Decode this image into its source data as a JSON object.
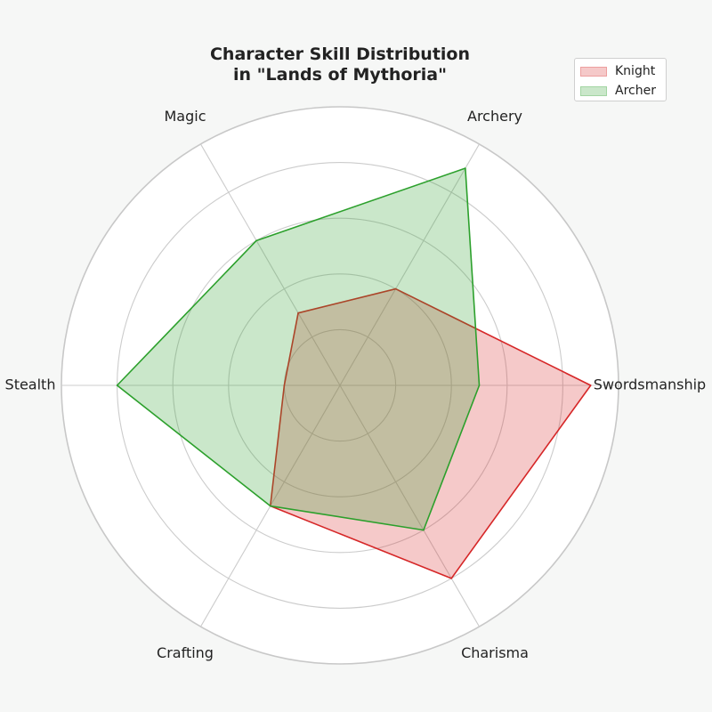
{
  "chart_data": {
    "type": "radar",
    "title_lines": [
      "Character Skill Distribution",
      "in \"Lands of Mythoria\""
    ],
    "axes": [
      "Swordsmanship",
      "Archery",
      "Magic",
      "Stealth",
      "Crafting",
      "Charisma"
    ],
    "rlim": [
      0,
      10
    ],
    "grid_levels": [
      2,
      4,
      6,
      8,
      10
    ],
    "grid": true,
    "legend_position": "top-right",
    "series": [
      {
        "name": "Knight",
        "values": [
          9,
          4,
          3,
          2,
          5,
          8
        ],
        "color": "#d62728"
      },
      {
        "name": "Archer",
        "values": [
          5,
          9,
          6,
          8,
          5,
          6
        ],
        "color": "#2ca02c"
      }
    ]
  }
}
